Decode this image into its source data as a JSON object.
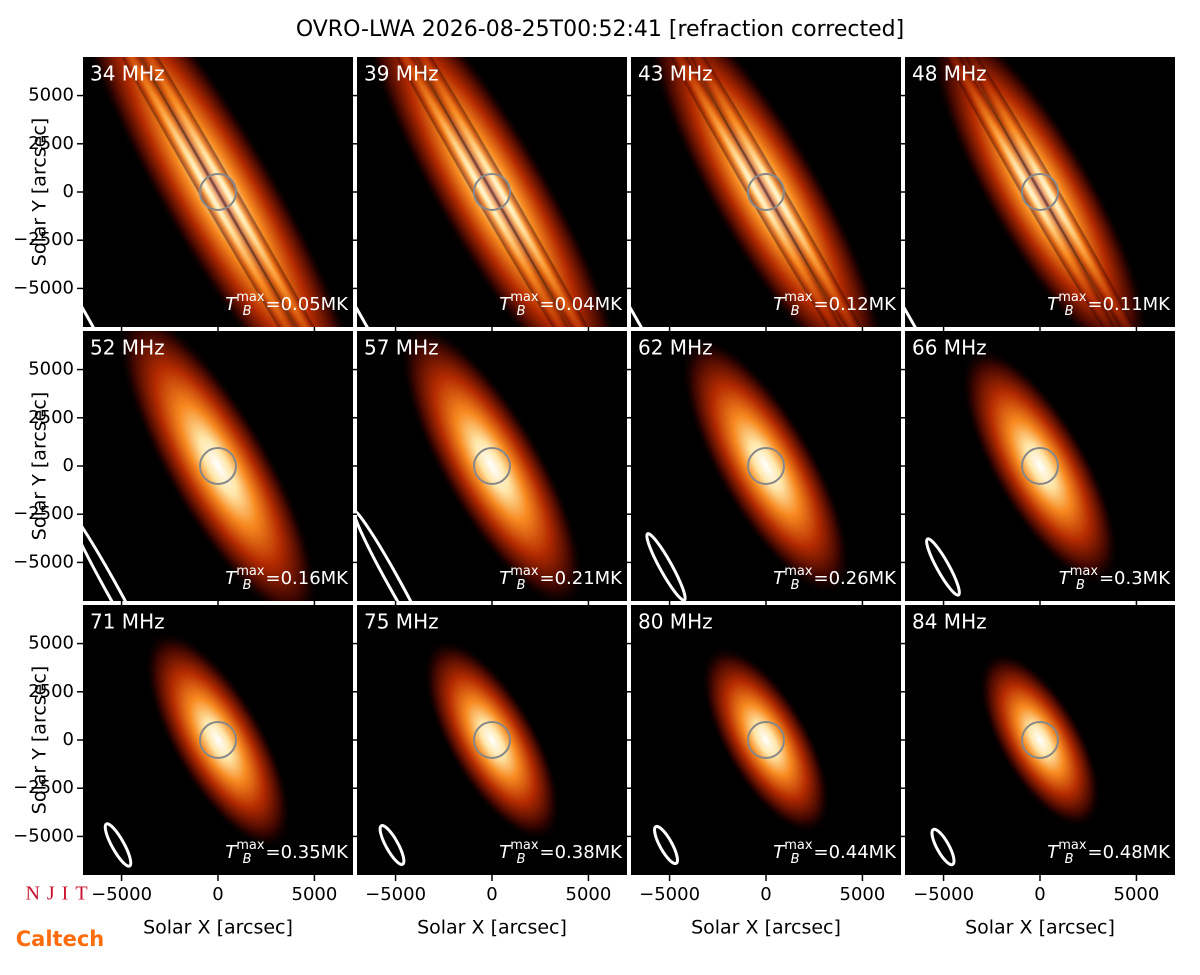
{
  "chart_data": {
    "type": "image-grid",
    "title": "OVRO-LWA 2026-08-25T00:52:41 [refraction corrected]",
    "xlabel": "Solar X [arcsec]",
    "ylabel": "Solar Y [arcsec]",
    "xlim": [
      -7000,
      7000
    ],
    "ylim": [
      -7000,
      7000
    ],
    "xticks": [
      {
        "value": -5000,
        "label": "−5000"
      },
      0,
      5000
    ],
    "yticks": [
      {
        "value": -5000,
        "label": "−5000"
      },
      {
        "value": -2500,
        "label": "−2500"
      },
      0,
      2500,
      5000
    ],
    "tb_symbol": {
      "base": "T",
      "sub": "B",
      "sup": "max",
      "eq": "="
    },
    "panels": [
      {
        "label": "34 MHz",
        "tb_max": "0.05MK"
      },
      {
        "label": "39 MHz",
        "tb_max": "0.04MK"
      },
      {
        "label": "43 MHz",
        "tb_max": "0.12MK"
      },
      {
        "label": "48 MHz",
        "tb_max": "0.11MK"
      },
      {
        "label": "52 MHz",
        "tb_max": "0.16MK"
      },
      {
        "label": "57 MHz",
        "tb_max": "0.21MK"
      },
      {
        "label": "62 MHz",
        "tb_max": "0.26MK"
      },
      {
        "label": "66 MHz",
        "tb_max": "0.3MK"
      },
      {
        "label": "71 MHz",
        "tb_max": "0.35MK"
      },
      {
        "label": "75 MHz",
        "tb_max": "0.38MK"
      },
      {
        "label": "80 MHz",
        "tb_max": "0.44MK"
      },
      {
        "label": "84 MHz",
        "tb_max": "0.48MK"
      }
    ],
    "logos": [
      "NJIT",
      "Caltech"
    ]
  }
}
